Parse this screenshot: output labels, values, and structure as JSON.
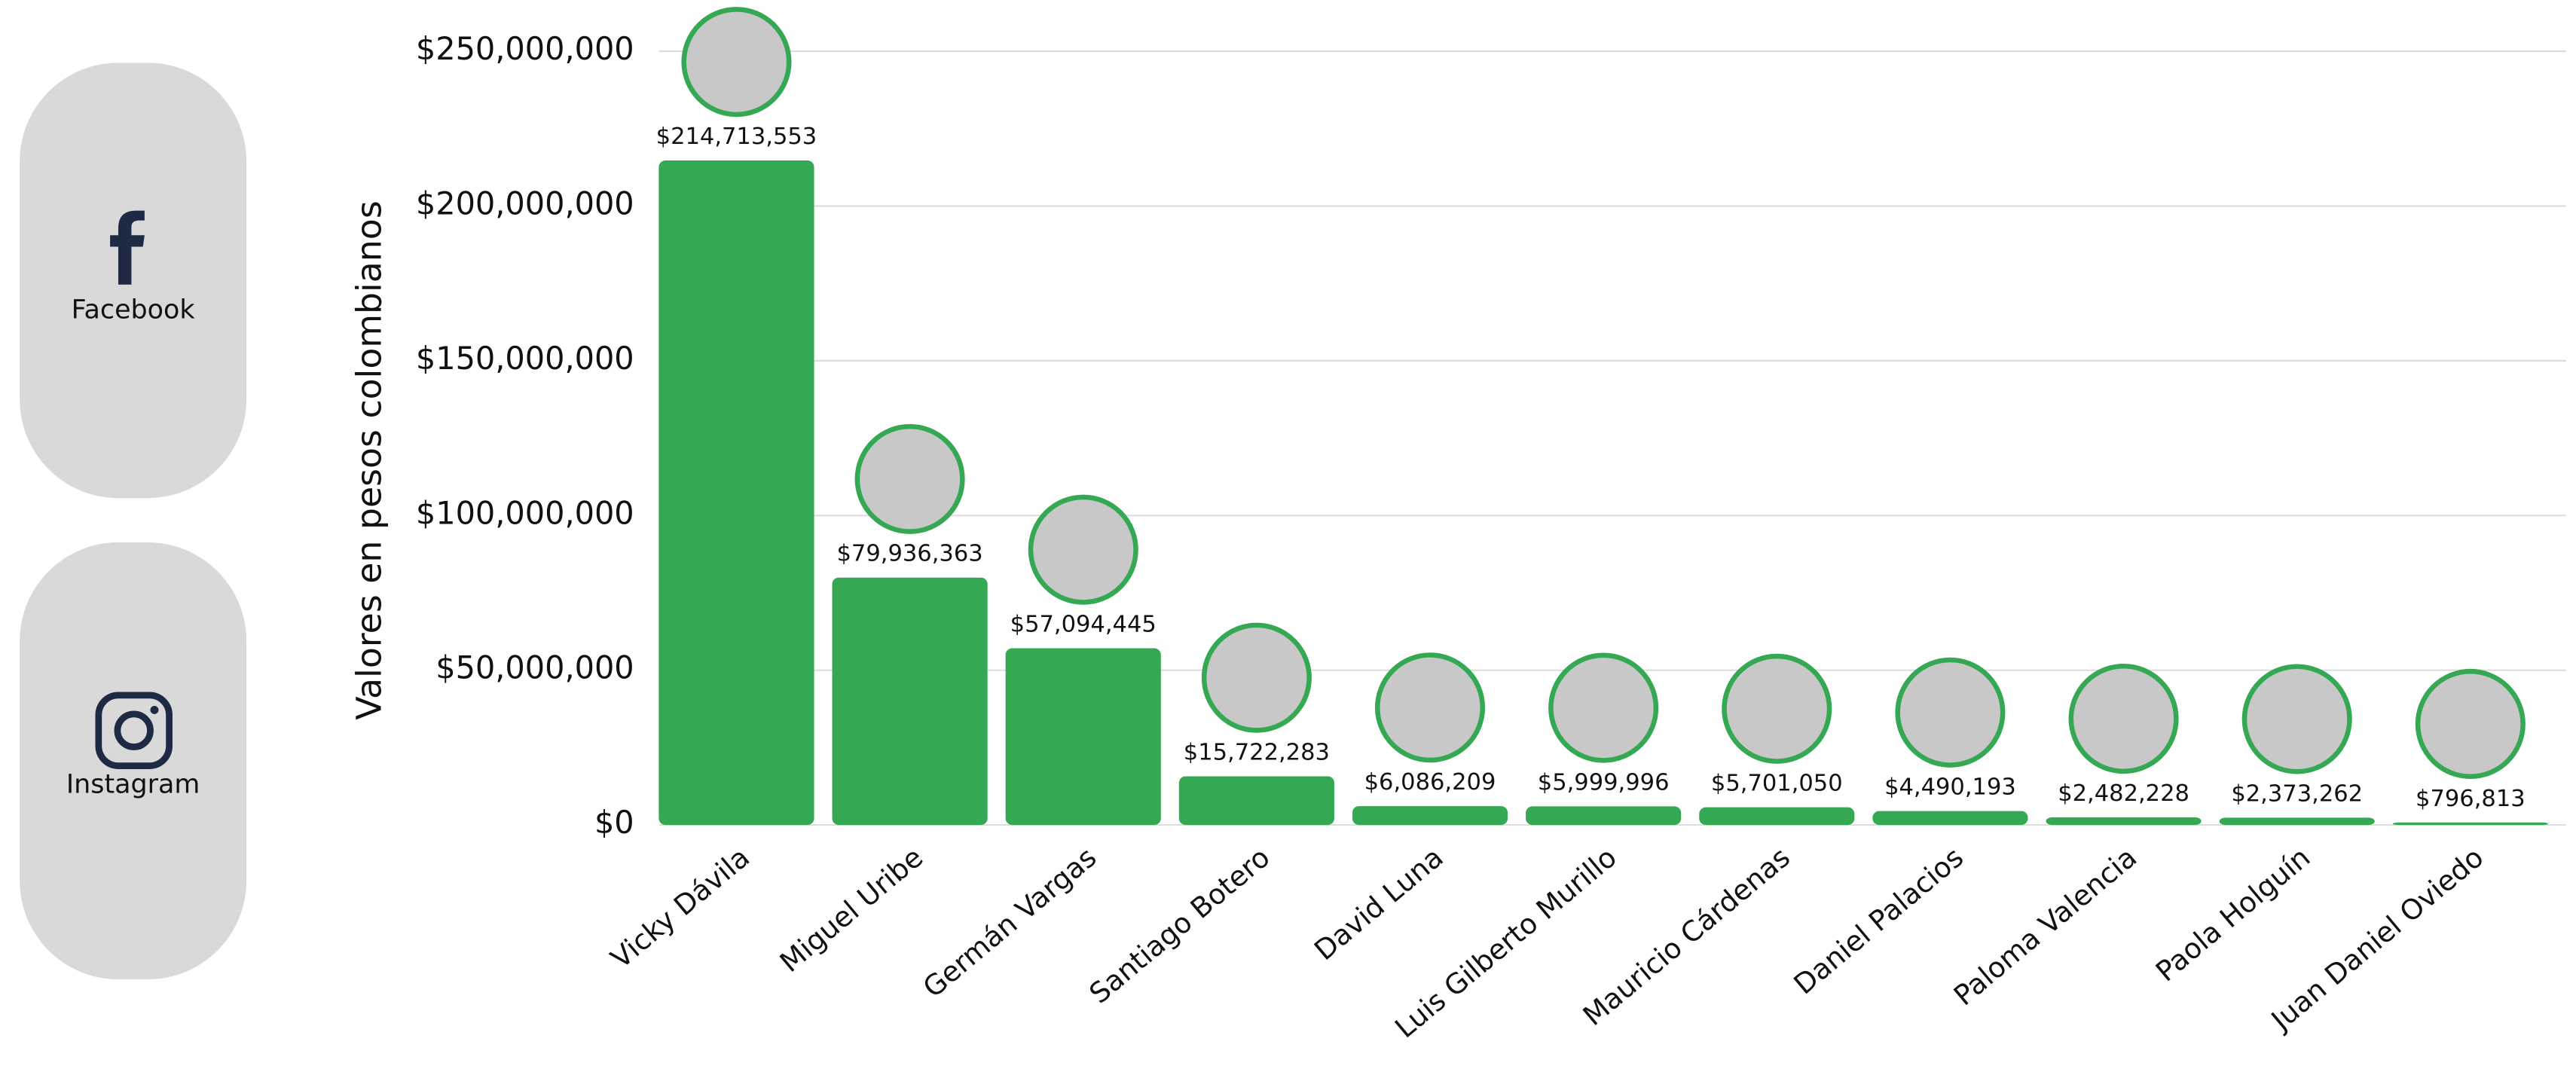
{
  "sidebar": {
    "buttons": [
      "Facebook",
      "Instagram"
    ]
  },
  "chart_data": {
    "type": "bar",
    "y_axis_label": "Valores en pesos colombianos",
    "categories": [
      "Vicky Dávila",
      "Miguel Uribe",
      "Germán Vargas",
      "Santiago Botero",
      "David Luna",
      "Luis Gilberto Murillo",
      "Mauricio Cárdenas",
      "Daniel Palacios",
      "Paloma Valencia",
      "Paola Holguín",
      "Juan Daniel Oviedo"
    ],
    "values": [
      214713553,
      79936363,
      57094445,
      15722283,
      6086209,
      5999996,
      5701050,
      4490193,
      2482228,
      2373262,
      796813
    ],
    "value_labels": [
      "$214,713,553",
      "$79,936,363",
      "$57,094,445",
      "$15,722,283",
      "$6,086,209",
      "$5,999,996",
      "$5,701,050",
      "$4,490,193",
      "$2,482,228",
      "$2,373,262",
      "$796,813"
    ],
    "color": "#34a853",
    "ylim": [
      0,
      250000000
    ],
    "yticks": [
      {
        "value": 0,
        "label": "$0"
      },
      {
        "value": 50000000,
        "label": "$50,000,000"
      },
      {
        "value": 100000000,
        "label": "$100,000,000"
      },
      {
        "value": 150000000,
        "label": "$150,000,000"
      },
      {
        "value": 200000000,
        "label": "$200,000,000"
      },
      {
        "value": 250000000,
        "label": "$250,000,000"
      }
    ],
    "grid": true
  }
}
